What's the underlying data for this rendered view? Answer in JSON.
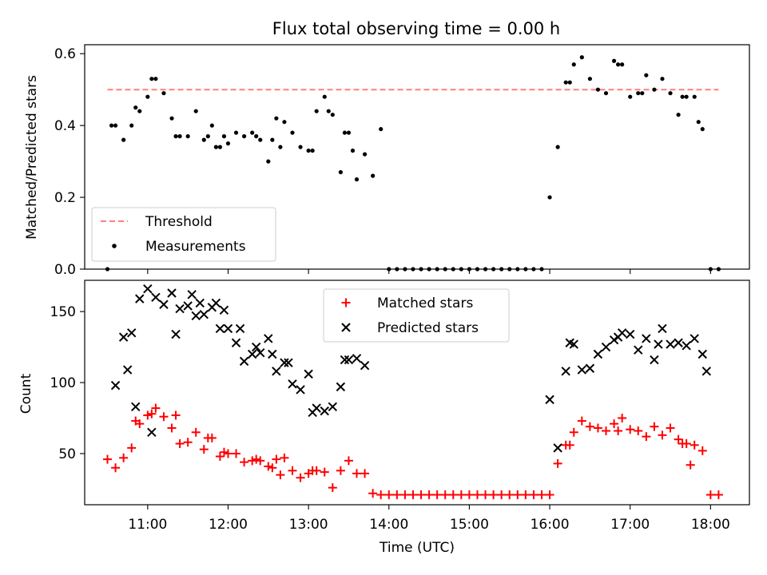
{
  "chart_data": [
    {
      "type": "scatter",
      "title": "Flux total observing time = 0.00 h",
      "xlabel": "",
      "ylabel": "Matched/Predicted stars",
      "ylim": [
        0,
        0.625
      ],
      "yticks": [
        0.0,
        0.2,
        0.4,
        0.6
      ],
      "ytick_labels": [
        "0.0",
        "0.2",
        "0.4",
        "0.6"
      ],
      "xlim": [
        "10:13",
        "18:29"
      ],
      "xticks": [
        "11:00",
        "12:00",
        "13:00",
        "14:00",
        "15:00",
        "16:00",
        "17:00",
        "18:00"
      ],
      "legend_position": "lower-left",
      "series": [
        {
          "name": "Threshold",
          "kind": "dashed-line",
          "color": "#ff7f7f",
          "x": [
            "10:30",
            "18:06"
          ],
          "y": [
            0.5,
            0.5
          ]
        },
        {
          "name": "Measurements",
          "kind": "dot",
          "color": "#000000",
          "x": [
            "10:30",
            "10:36",
            "10:42",
            "10:48",
            "10:54",
            "11:00",
            "11:06",
            "11:12",
            "11:18",
            "11:24",
            "11:30",
            "11:36",
            "11:42",
            "11:48",
            "11:54",
            "12:00",
            "12:06",
            "12:12",
            "12:18",
            "12:24",
            "12:30",
            "12:36",
            "12:42",
            "12:48",
            "12:54",
            "13:00",
            "13:06",
            "13:12",
            "13:18",
            "13:24",
            "13:30",
            "13:36",
            "13:42",
            "13:48",
            "13:54",
            "14:00",
            "14:06",
            "14:12",
            "14:18",
            "14:24",
            "14:30",
            "14:36",
            "14:42",
            "14:48",
            "14:54",
            "15:00",
            "15:06",
            "15:12",
            "15:18",
            "15:24",
            "15:30",
            "15:36",
            "15:42",
            "15:48",
            "15:54",
            "16:00",
            "16:06",
            "16:12",
            "16:18",
            "16:24",
            "16:30",
            "16:36",
            "16:42",
            "16:48",
            "16:54",
            "17:00",
            "17:06",
            "17:12",
            "17:18",
            "17:24",
            "17:30",
            "17:36",
            "17:42",
            "17:48",
            "17:54",
            "18:00",
            "18:06",
            "10:33",
            "10:51",
            "11:03",
            "11:21",
            "11:45",
            "11:51",
            "11:57",
            "12:21",
            "12:33",
            "12:39",
            "13:03",
            "13:15",
            "13:27",
            "13:33",
            "16:15",
            "16:51",
            "17:09",
            "17:39",
            "17:51"
          ],
          "y": [
            0.0,
            0.4,
            0.36,
            0.4,
            0.44,
            0.48,
            0.53,
            0.49,
            0.42,
            0.37,
            0.37,
            0.44,
            0.36,
            0.4,
            0.34,
            0.35,
            0.38,
            0.37,
            0.38,
            0.36,
            0.3,
            0.42,
            0.41,
            0.38,
            0.34,
            0.33,
            0.44,
            0.48,
            0.43,
            0.27,
            0.38,
            0.25,
            0.32,
            0.26,
            0.39,
            0.0,
            0.0,
            0.0,
            0.0,
            0.0,
            0.0,
            0.0,
            0.0,
            0.0,
            0.0,
            0.0,
            0.0,
            0.0,
            0.0,
            0.0,
            0.0,
            0.0,
            0.0,
            0.0,
            0.0,
            0.2,
            0.34,
            0.52,
            0.57,
            0.59,
            0.53,
            0.5,
            0.49,
            0.58,
            0.57,
            0.48,
            0.49,
            0.54,
            0.5,
            0.53,
            0.49,
            0.43,
            0.48,
            0.48,
            0.39,
            0.0,
            0.0,
            0.4,
            0.45,
            0.53,
            0.37,
            0.37,
            0.34,
            0.37,
            0.37,
            0.36,
            0.34,
            0.33,
            0.44,
            0.38,
            0.33,
            0.52,
            0.57,
            0.49,
            0.48,
            0.41
          ]
        }
      ]
    },
    {
      "type": "scatter",
      "title": "",
      "xlabel": "Time (UTC)",
      "ylabel": "Count",
      "ylim": [
        14,
        172
      ],
      "yticks": [
        50,
        100,
        150
      ],
      "ytick_labels": [
        "50",
        "100",
        "150"
      ],
      "xlim": [
        "10:13",
        "18:29"
      ],
      "xticks": [
        "11:00",
        "12:00",
        "13:00",
        "14:00",
        "15:00",
        "16:00",
        "17:00",
        "18:00"
      ],
      "legend_position": "top-center",
      "series": [
        {
          "name": "Matched stars",
          "kind": "plus",
          "color": "#ff0000",
          "x": [
            "10:30",
            "10:36",
            "10:42",
            "10:48",
            "10:54",
            "11:00",
            "11:06",
            "11:12",
            "11:18",
            "11:24",
            "11:30",
            "11:36",
            "11:42",
            "11:48",
            "11:54",
            "12:00",
            "12:06",
            "12:12",
            "12:18",
            "12:24",
            "12:30",
            "12:36",
            "12:42",
            "12:48",
            "12:54",
            "13:00",
            "13:06",
            "13:12",
            "13:18",
            "13:24",
            "13:30",
            "13:36",
            "13:42",
            "13:48",
            "13:54",
            "14:00",
            "14:06",
            "14:12",
            "14:18",
            "14:24",
            "14:30",
            "14:36",
            "14:42",
            "14:48",
            "14:54",
            "15:00",
            "15:06",
            "15:12",
            "15:18",
            "15:24",
            "15:30",
            "15:36",
            "15:42",
            "15:48",
            "15:54",
            "16:00",
            "16:06",
            "16:12",
            "16:18",
            "16:24",
            "16:30",
            "16:36",
            "16:42",
            "16:48",
            "16:54",
            "17:00",
            "17:06",
            "17:12",
            "17:18",
            "17:24",
            "17:30",
            "17:36",
            "17:42",
            "17:48",
            "17:54",
            "18:00",
            "18:06",
            "10:51",
            "11:03",
            "11:21",
            "11:45",
            "11:57",
            "12:21",
            "12:33",
            "12:39",
            "13:03",
            "16:15",
            "16:51",
            "17:39",
            "17:45"
          ],
          "y": [
            46,
            40,
            47,
            54,
            71,
            77,
            82,
            76,
            68,
            57,
            58,
            65,
            53,
            61,
            48,
            50,
            50,
            44,
            45,
            45,
            41,
            46,
            47,
            38,
            33,
            36,
            38,
            37,
            26,
            38,
            45,
            36,
            36,
            22,
            21,
            21,
            21,
            21,
            21,
            21,
            21,
            21,
            21,
            21,
            21,
            21,
            21,
            21,
            21,
            21,
            21,
            21,
            21,
            21,
            21,
            21,
            43,
            56,
            65,
            73,
            69,
            68,
            66,
            71,
            75,
            67,
            66,
            62,
            69,
            63,
            68,
            60,
            57,
            56,
            52,
            21,
            21,
            73,
            78,
            77,
            61,
            51,
            46,
            40,
            35,
            38,
            56,
            66,
            57,
            42
          ]
        },
        {
          "name": "Predicted stars",
          "kind": "cross",
          "color": "#000000",
          "x": [
            "10:36",
            "10:42",
            "10:48",
            "10:54",
            "11:00",
            "11:06",
            "11:12",
            "11:18",
            "11:24",
            "11:30",
            "11:36",
            "11:42",
            "11:48",
            "11:54",
            "12:00",
            "12:06",
            "12:12",
            "12:18",
            "12:24",
            "12:30",
            "12:36",
            "12:42",
            "12:48",
            "12:54",
            "13:00",
            "13:06",
            "13:12",
            "13:18",
            "13:24",
            "13:30",
            "13:36",
            "13:42",
            "16:00",
            "16:06",
            "16:12",
            "16:18",
            "16:24",
            "16:30",
            "16:36",
            "16:42",
            "16:48",
            "16:54",
            "17:00",
            "17:06",
            "17:12",
            "17:18",
            "17:24",
            "17:30",
            "17:36",
            "17:42",
            "17:48",
            "17:54",
            "17:57",
            "10:45",
            "10:51",
            "11:03",
            "11:21",
            "11:33",
            "11:39",
            "11:51",
            "11:57",
            "12:09",
            "12:21",
            "12:33",
            "12:45",
            "13:03",
            "13:27",
            "16:15",
            "16:51",
            "17:21"
          ],
          "y": [
            98,
            132,
            135,
            159,
            166,
            160,
            155,
            163,
            152,
            154,
            147,
            148,
            153,
            138,
            138,
            128,
            115,
            120,
            121,
            131,
            108,
            114,
            99,
            95,
            106,
            82,
            80,
            83,
            97,
            116,
            117,
            112,
            88,
            54,
            108,
            127,
            109,
            110,
            120,
            125,
            130,
            135,
            134,
            123,
            131,
            116,
            138,
            127,
            128,
            126,
            131,
            120,
            108,
            109,
            83,
            65,
            134,
            162,
            156,
            156,
            151,
            138,
            125,
            120,
            114,
            79,
            116,
            128,
            132,
            127
          ]
        }
      ]
    }
  ]
}
